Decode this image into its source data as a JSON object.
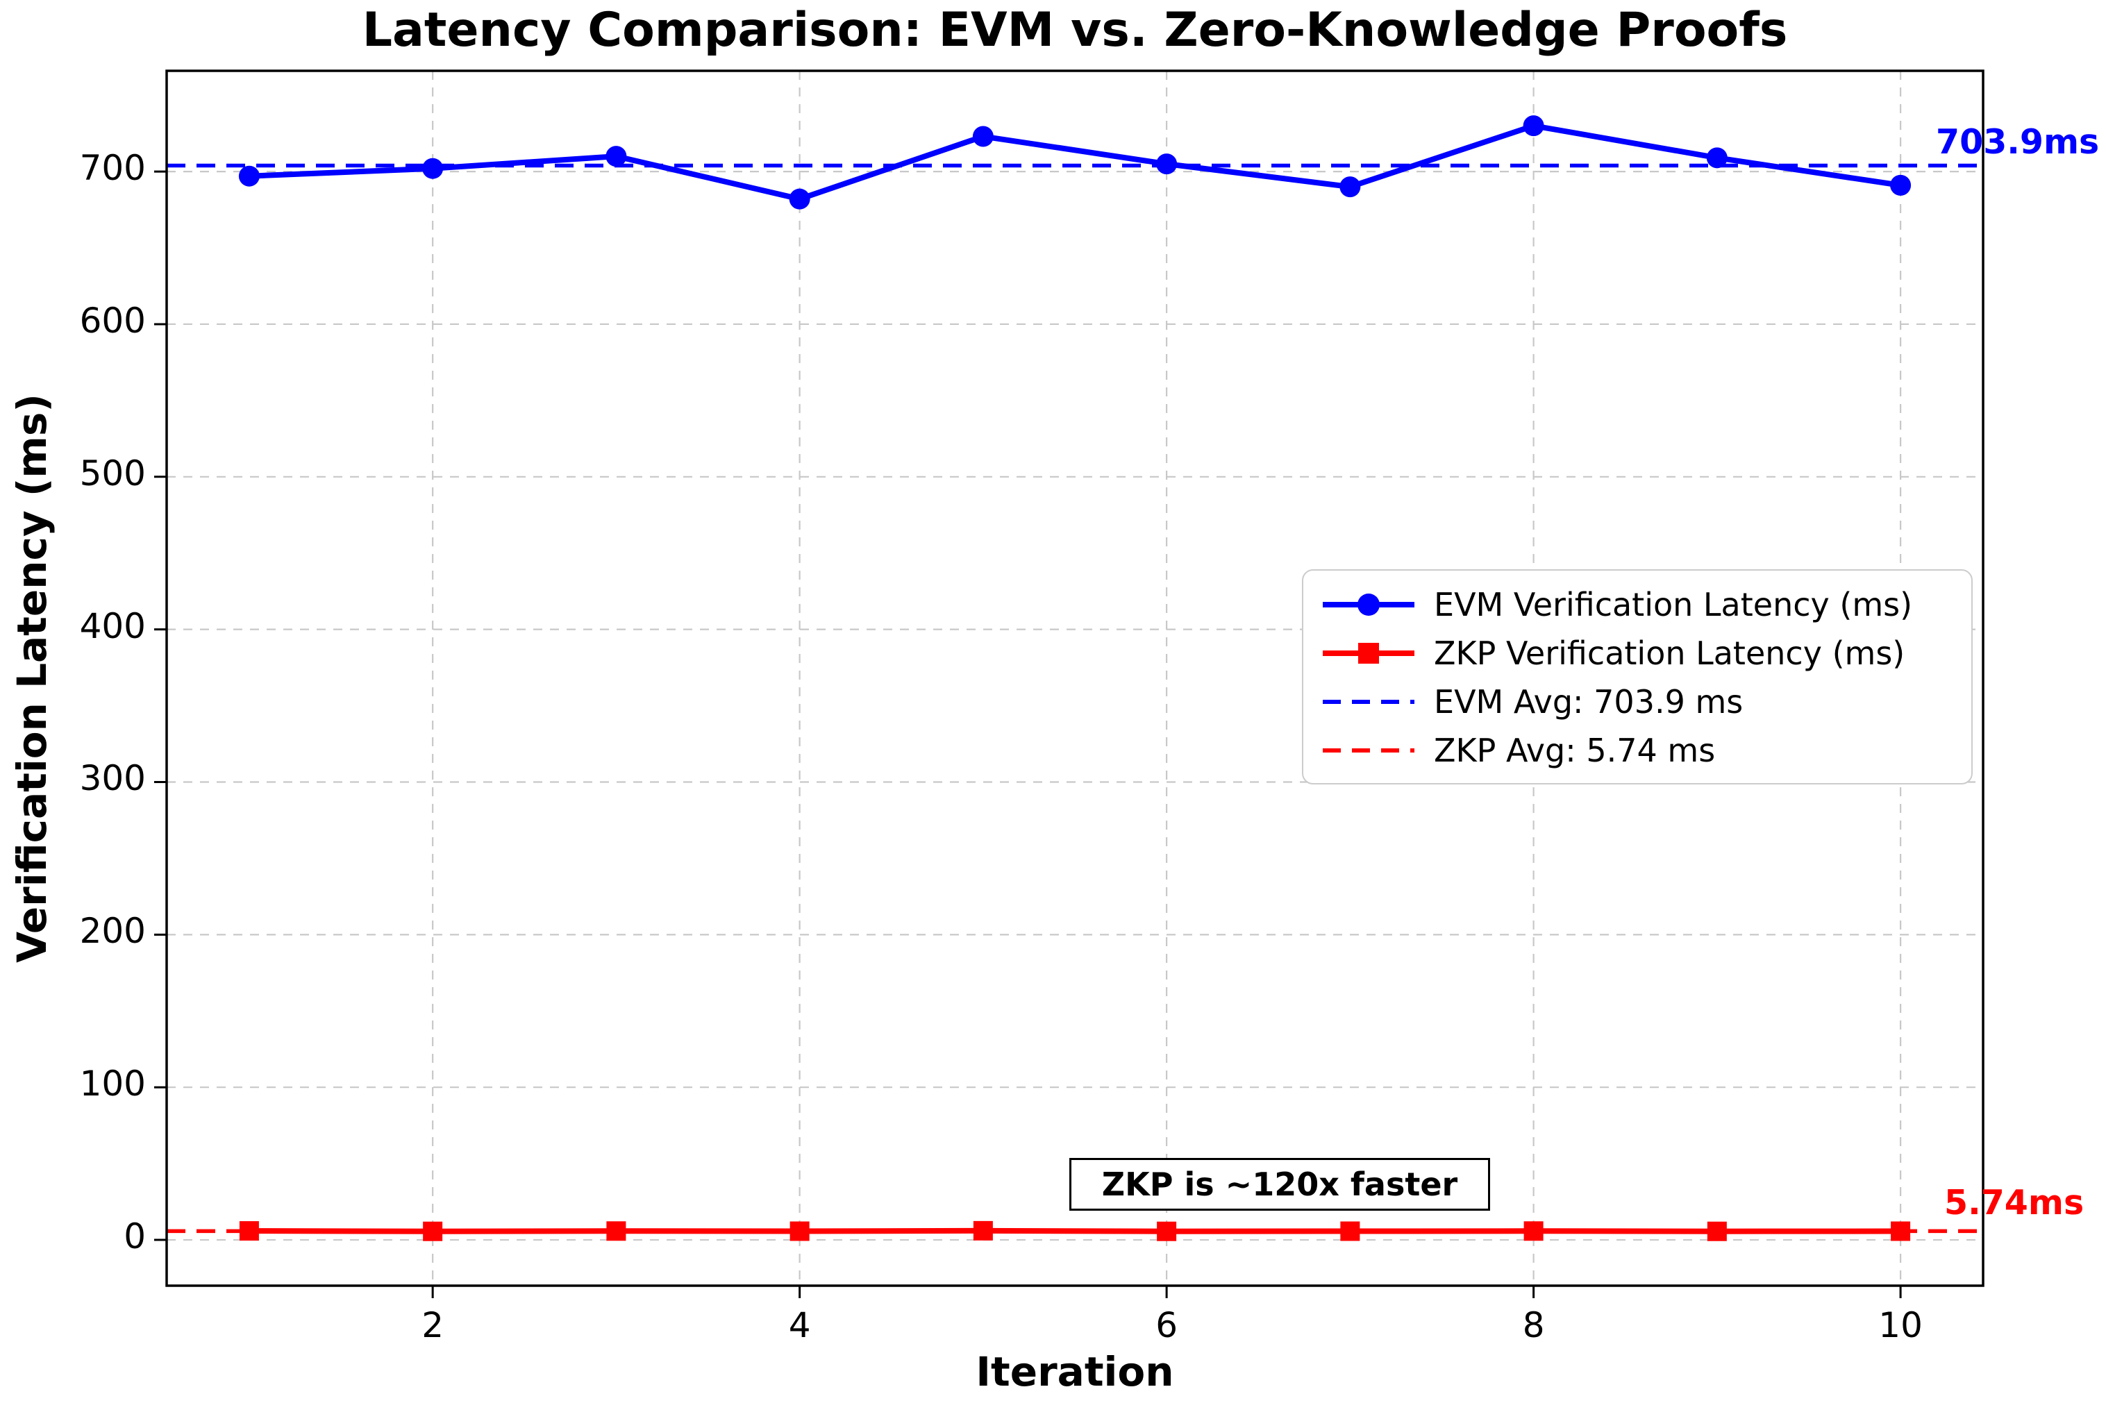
{
  "title": "Latency Comparison: EVM vs. Zero-Knowledge Proofs",
  "x_axis": {
    "label": "Iteration",
    "ticks": [
      2,
      4,
      6,
      8,
      10
    ]
  },
  "y_axis": {
    "label": "Verification Latency (ms)",
    "ticks": [
      0,
      100,
      200,
      300,
      400,
      500,
      600,
      700
    ]
  },
  "legend": {
    "position": "center-right"
  },
  "annotations": {
    "evm_avg_value_label": "703.9ms",
    "zkp_avg_value_label": "5.74ms",
    "speedup_note": "ZKP is ~120x faster"
  },
  "colors": {
    "evm": "#0000ff",
    "zkp": "#ff0000",
    "grid": "#c8c8c8",
    "spine": "#000000",
    "background": "#ffffff"
  },
  "chart_data": {
    "type": "line",
    "x": [
      1,
      2,
      3,
      4,
      5,
      6,
      7,
      8,
      9,
      10
    ],
    "series": [
      {
        "name": "EVM Verification Latency (ms)",
        "color": "#0000ff",
        "marker": "circle",
        "linestyle": "solid",
        "values": [
          697,
          702,
          710,
          682,
          723,
          705,
          690,
          730,
          709,
          691
        ]
      },
      {
        "name": "ZKP Verification Latency (ms)",
        "color": "#ff0000",
        "marker": "square",
        "linestyle": "solid",
        "values": [
          5.9,
          5.6,
          5.8,
          5.7,
          6.0,
          5.6,
          5.7,
          5.8,
          5.6,
          5.7
        ]
      }
    ],
    "avg_lines": [
      {
        "name": "EVM Avg: 703.9 ms",
        "value": 703.9,
        "color": "#0000ff",
        "linestyle": "dashed"
      },
      {
        "name": "ZKP Avg: 5.74 ms",
        "value": 5.74,
        "color": "#ff0000",
        "linestyle": "dashed"
      }
    ],
    "title": "Latency Comparison: EVM vs. Zero-Knowledge Proofs",
    "xlabel": "Iteration",
    "ylabel": "Verification Latency (ms)",
    "xlim": [
      0.55,
      10.45
    ],
    "ylim": [
      -30,
      766
    ],
    "grid": true,
    "legend_position": "center-right"
  }
}
